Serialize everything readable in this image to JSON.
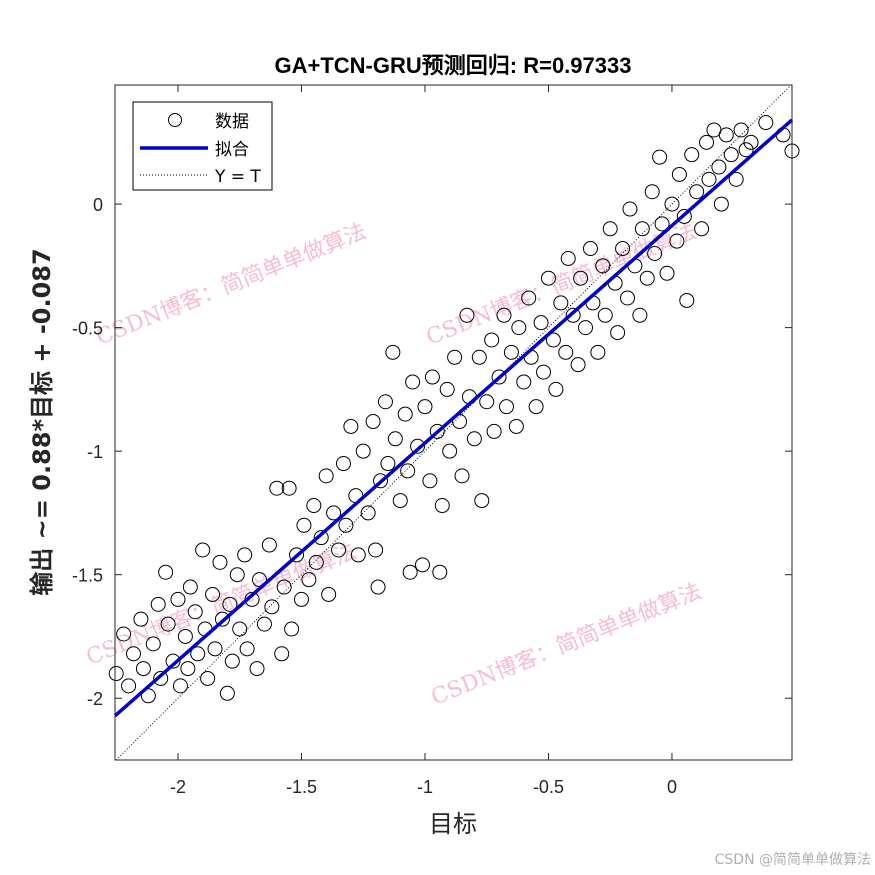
{
  "chart_data": {
    "type": "scatter",
    "title": "GA+TCN-GRU预测回归: R=0.97333",
    "xlabel": "目标",
    "ylabel": "输出 ~= 0.88*目标 + -0.087",
    "xlim": [
      -2.255,
      0.486
    ],
    "ylim": [
      -2.25,
      0.482
    ],
    "xticks": [
      -2,
      -1.5,
      -1,
      -0.5,
      0
    ],
    "yticks": [
      -2,
      -1.5,
      -1,
      -0.5,
      0
    ],
    "xtick_labels": [
      "-2",
      "-1.5",
      "-1",
      "-0.5",
      "0"
    ],
    "ytick_labels": [
      "-2",
      "-1.5",
      "-1",
      "-0.5",
      "0"
    ],
    "grid": false,
    "legend": {
      "placement": "top-left",
      "entries": [
        "数据",
        "拟合",
        "Y = T"
      ]
    },
    "fit": {
      "slope": 0.88,
      "intercept": -0.087,
      "color": "#0000cc"
    },
    "identity_line": {
      "color": "#000000",
      "style": "dotted"
    },
    "marker": {
      "shape": "open-circle",
      "color": "#000000"
    },
    "points": [
      [
        -2.25,
        -1.9
      ],
      [
        -2.22,
        -1.74
      ],
      [
        -2.2,
        -1.95
      ],
      [
        -2.18,
        -1.82
      ],
      [
        -2.15,
        -1.68
      ],
      [
        -2.14,
        -1.88
      ],
      [
        -2.12,
        -1.99
      ],
      [
        -2.1,
        -1.78
      ],
      [
        -2.08,
        -1.62
      ],
      [
        -2.07,
        -1.92
      ],
      [
        -2.05,
        -1.49
      ],
      [
        -2.04,
        -1.7
      ],
      [
        -2.02,
        -1.85
      ],
      [
        -2.0,
        -1.6
      ],
      [
        -1.99,
        -1.95
      ],
      [
        -1.97,
        -1.75
      ],
      [
        -1.96,
        -1.88
      ],
      [
        -1.95,
        -1.55
      ],
      [
        -1.93,
        -1.65
      ],
      [
        -1.92,
        -1.82
      ],
      [
        -1.9,
        -1.4
      ],
      [
        -1.89,
        -1.72
      ],
      [
        -1.88,
        -1.92
      ],
      [
        -1.86,
        -1.58
      ],
      [
        -1.85,
        -1.8
      ],
      [
        -1.83,
        -1.45
      ],
      [
        -1.82,
        -1.68
      ],
      [
        -1.8,
        -1.98
      ],
      [
        -1.79,
        -1.62
      ],
      [
        -1.78,
        -1.85
      ],
      [
        -1.76,
        -1.5
      ],
      [
        -1.75,
        -1.72
      ],
      [
        -1.73,
        -1.42
      ],
      [
        -1.72,
        -1.8
      ],
      [
        -1.7,
        -1.6
      ],
      [
        -1.68,
        -1.88
      ],
      [
        -1.67,
        -1.52
      ],
      [
        -1.65,
        -1.7
      ],
      [
        -1.63,
        -1.38
      ],
      [
        -1.62,
        -1.63
      ],
      [
        -1.6,
        -1.15
      ],
      [
        -1.58,
        -1.82
      ],
      [
        -1.57,
        -1.55
      ],
      [
        -1.55,
        -1.15
      ],
      [
        -1.54,
        -1.72
      ],
      [
        -1.52,
        -1.42
      ],
      [
        -1.5,
        -1.6
      ],
      [
        -1.49,
        -1.3
      ],
      [
        -1.47,
        -1.52
      ],
      [
        -1.45,
        -1.22
      ],
      [
        -1.44,
        -1.45
      ],
      [
        -1.42,
        -1.35
      ],
      [
        -1.4,
        -1.1
      ],
      [
        -1.39,
        -1.58
      ],
      [
        -1.37,
        -1.25
      ],
      [
        -1.35,
        -1.4
      ],
      [
        -1.33,
        -1.05
      ],
      [
        -1.32,
        -1.3
      ],
      [
        -1.3,
        -0.9
      ],
      [
        -1.28,
        -1.18
      ],
      [
        -1.27,
        -1.42
      ],
      [
        -1.25,
        -1.0
      ],
      [
        -1.23,
        -1.25
      ],
      [
        -1.21,
        -0.88
      ],
      [
        -1.2,
        -1.4
      ],
      [
        -1.19,
        -1.55
      ],
      [
        -1.18,
        -1.12
      ],
      [
        -1.16,
        -0.8
      ],
      [
        -1.15,
        -1.05
      ],
      [
        -1.13,
        -0.6
      ],
      [
        -1.12,
        -0.95
      ],
      [
        -1.1,
        -1.2
      ],
      [
        -1.08,
        -0.85
      ],
      [
        -1.07,
        -1.08
      ],
      [
        -1.06,
        -1.49
      ],
      [
        -1.05,
        -0.72
      ],
      [
        -1.03,
        -0.98
      ],
      [
        -1.01,
        -1.46
      ],
      [
        -1.0,
        -0.82
      ],
      [
        -0.98,
        -1.12
      ],
      [
        -0.97,
        -0.7
      ],
      [
        -0.95,
        -0.92
      ],
      [
        -0.94,
        -1.49
      ],
      [
        -0.93,
        -1.22
      ],
      [
        -0.91,
        -0.75
      ],
      [
        -0.9,
        -1.0
      ],
      [
        -0.88,
        -0.62
      ],
      [
        -0.86,
        -0.88
      ],
      [
        -0.85,
        -1.1
      ],
      [
        -0.83,
        -0.45
      ],
      [
        -0.82,
        -0.78
      ],
      [
        -0.8,
        -0.95
      ],
      [
        -0.78,
        -0.62
      ],
      [
        -0.77,
        -1.2
      ],
      [
        -0.75,
        -0.8
      ],
      [
        -0.73,
        -0.55
      ],
      [
        -0.72,
        -0.92
      ],
      [
        -0.7,
        -0.7
      ],
      [
        -0.68,
        -0.45
      ],
      [
        -0.67,
        -0.82
      ],
      [
        -0.65,
        -0.6
      ],
      [
        -0.63,
        -0.9
      ],
      [
        -0.62,
        -0.5
      ],
      [
        -0.6,
        -0.72
      ],
      [
        -0.58,
        -0.38
      ],
      [
        -0.57,
        -0.62
      ],
      [
        -0.55,
        -0.82
      ],
      [
        -0.53,
        -0.48
      ],
      [
        -0.52,
        -0.68
      ],
      [
        -0.5,
        -0.3
      ],
      [
        -0.48,
        -0.55
      ],
      [
        -0.47,
        -0.75
      ],
      [
        -0.45,
        -0.4
      ],
      [
        -0.43,
        -0.6
      ],
      [
        -0.42,
        -0.22
      ],
      [
        -0.4,
        -0.45
      ],
      [
        -0.38,
        -0.65
      ],
      [
        -0.37,
        -0.3
      ],
      [
        -0.35,
        -0.5
      ],
      [
        -0.33,
        -0.18
      ],
      [
        -0.32,
        -0.4
      ],
      [
        -0.3,
        -0.6
      ],
      [
        -0.28,
        -0.25
      ],
      [
        -0.27,
        -0.45
      ],
      [
        -0.25,
        -0.1
      ],
      [
        -0.23,
        -0.32
      ],
      [
        -0.22,
        -0.52
      ],
      [
        -0.2,
        -0.18
      ],
      [
        -0.18,
        -0.38
      ],
      [
        -0.17,
        -0.02
      ],
      [
        -0.15,
        -0.25
      ],
      [
        -0.13,
        -0.45
      ],
      [
        -0.12,
        -0.1
      ],
      [
        -0.1,
        -0.3
      ],
      [
        -0.08,
        0.05
      ],
      [
        -0.07,
        -0.2
      ],
      [
        -0.05,
        0.19
      ],
      [
        -0.04,
        -0.08
      ],
      [
        -0.02,
        -0.28
      ],
      [
        0.0,
        0.0
      ],
      [
        0.02,
        -0.15
      ],
      [
        0.03,
        0.12
      ],
      [
        0.05,
        -0.05
      ],
      [
        0.06,
        -0.39
      ],
      [
        0.08,
        0.2
      ],
      [
        0.1,
        0.05
      ],
      [
        0.12,
        -0.1
      ],
      [
        0.14,
        0.25
      ],
      [
        0.15,
        0.1
      ],
      [
        0.17,
        0.3
      ],
      [
        0.19,
        0.15
      ],
      [
        0.2,
        0.0
      ],
      [
        0.22,
        0.28
      ],
      [
        0.24,
        0.2
      ],
      [
        0.26,
        0.1
      ],
      [
        0.28,
        0.3
      ],
      [
        0.3,
        0.22
      ],
      [
        0.32,
        0.25
      ],
      [
        0.38,
        0.33
      ],
      [
        0.45,
        0.28
      ],
      [
        0.486,
        0.215
      ]
    ]
  },
  "watermark": "CSDN博客：简简单单做算法",
  "credit": "CSDN @简简单单做算法"
}
